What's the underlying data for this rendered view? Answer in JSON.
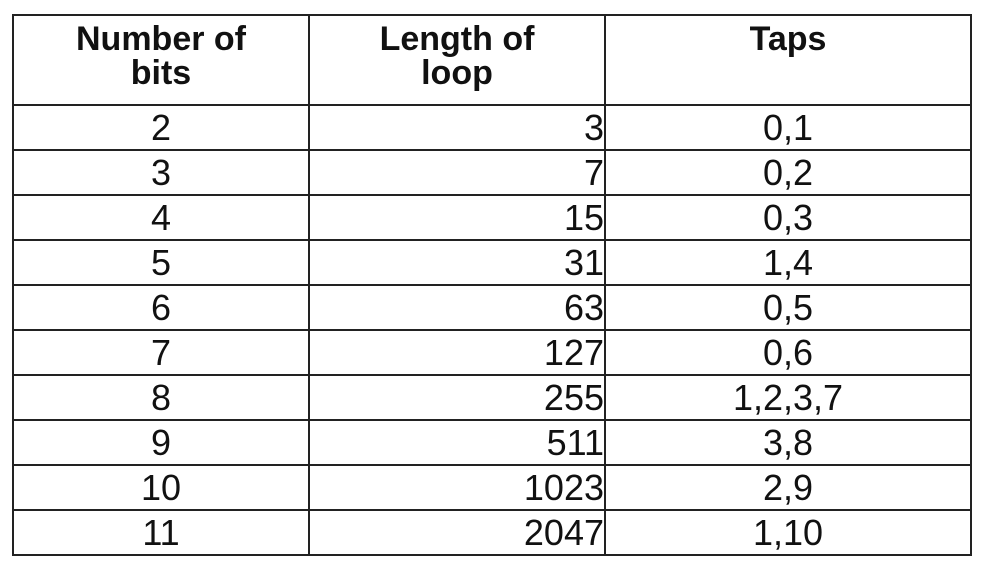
{
  "table": {
    "headers": {
      "bits": [
        "Number of",
        "bits"
      ],
      "loop": [
        "Length of",
        "loop"
      ],
      "taps": [
        "Taps"
      ]
    },
    "rows": [
      {
        "bits": "2",
        "loop": "3",
        "taps": "0,1"
      },
      {
        "bits": "3",
        "loop": "7",
        "taps": "0,2"
      },
      {
        "bits": "4",
        "loop": "15",
        "taps": "0,3"
      },
      {
        "bits": "5",
        "loop": "31",
        "taps": "1,4"
      },
      {
        "bits": "6",
        "loop": "63",
        "taps": "0,5"
      },
      {
        "bits": "7",
        "loop": "127",
        "taps": "0,6"
      },
      {
        "bits": "8",
        "loop": "255",
        "taps": "1,2,3,7"
      },
      {
        "bits": "9",
        "loop": "511",
        "taps": "3,8"
      },
      {
        "bits": "10",
        "loop": "1023",
        "taps": "2,9"
      },
      {
        "bits": "11",
        "loop": "2047",
        "taps": "1,10"
      }
    ]
  }
}
